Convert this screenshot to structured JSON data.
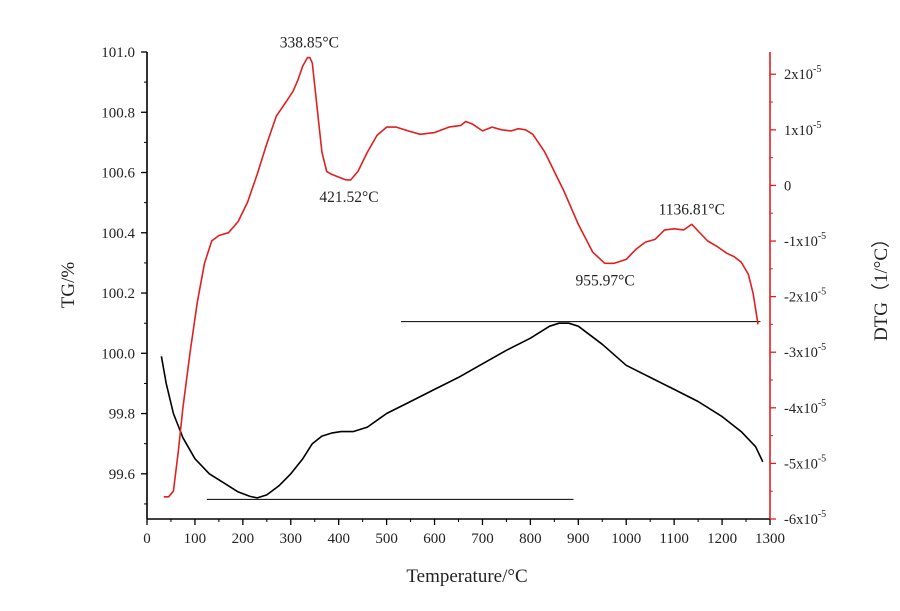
{
  "chart_data": {
    "type": "line",
    "title": "",
    "xlabel": "Temperature/°C",
    "ylabel_left": "TG/%",
    "ylabel_right": "DTG（1/°C）",
    "xlim": [
      0,
      1300
    ],
    "ylim_left": [
      99.45,
      101.0
    ],
    "ylim_right": [
      -6,
      2.4
    ],
    "right_scale_unit": "x10-5",
    "x_ticks": [
      0,
      100,
      200,
      300,
      400,
      500,
      600,
      700,
      800,
      900,
      1000,
      1100,
      1200,
      1300
    ],
    "x_tick_labels": [
      "0",
      "100",
      "200",
      "300",
      "400",
      "500",
      "600",
      "700",
      "800",
      "900",
      "1000",
      "1100",
      "1200",
      "1300"
    ],
    "y_left_ticks": [
      99.6,
      99.8,
      100.0,
      100.2,
      100.4,
      100.6,
      100.8,
      101.0
    ],
    "y_left_tick_labels": [
      "99.6",
      "99.8",
      "100.0",
      "100.2",
      "100.4",
      "100.6",
      "100.8",
      "101.0"
    ],
    "y_right_ticks": [
      {
        "value": 2,
        "mantissa": "2x10",
        "exp": "-5"
      },
      {
        "value": 1,
        "mantissa": "1x10",
        "exp": "-5"
      },
      {
        "value": 0,
        "mantissa": "0",
        "exp": ""
      },
      {
        "value": -1,
        "mantissa": "-1x10",
        "exp": "-5"
      },
      {
        "value": -2,
        "mantissa": "-2x10",
        "exp": "-5"
      },
      {
        "value": -3,
        "mantissa": "-3x10",
        "exp": "-5"
      },
      {
        "value": -4,
        "mantissa": "-4x10",
        "exp": "-5"
      },
      {
        "value": -5,
        "mantissa": "-5x10",
        "exp": "-5"
      },
      {
        "value": -6,
        "mantissa": "-6x10",
        "exp": "-5"
      }
    ],
    "series": [
      {
        "name": "TG",
        "axis": "left",
        "color": "#000000",
        "x": [
          30,
          40,
          55,
          75,
          100,
          130,
          160,
          190,
          215,
          230,
          250,
          275,
          300,
          325,
          345,
          365,
          385,
          405,
          430,
          460,
          500,
          550,
          600,
          650,
          700,
          750,
          800,
          840,
          860,
          880,
          900,
          950,
          1000,
          1050,
          1100,
          1150,
          1200,
          1240,
          1270,
          1285
        ],
        "values": [
          99.99,
          99.9,
          99.8,
          99.72,
          99.65,
          99.6,
          99.57,
          99.54,
          99.525,
          99.52,
          99.53,
          99.56,
          99.6,
          99.65,
          99.7,
          99.725,
          99.735,
          99.74,
          99.74,
          99.755,
          99.8,
          99.84,
          99.88,
          99.92,
          99.965,
          100.01,
          100.05,
          100.09,
          100.1,
          100.1,
          100.09,
          100.03,
          99.96,
          99.92,
          99.88,
          99.84,
          99.79,
          99.74,
          99.69,
          99.64
        ]
      },
      {
        "name": "DTG",
        "axis": "right",
        "color": "#e02020",
        "x": [
          35,
          45,
          55,
          65,
          75,
          90,
          105,
          120,
          135,
          150,
          170,
          190,
          210,
          230,
          250,
          270,
          290,
          305,
          315,
          325,
          335,
          340,
          345,
          355,
          365,
          375,
          385,
          400,
          415,
          425,
          440,
          460,
          480,
          500,
          520,
          545,
          570,
          600,
          630,
          655,
          665,
          680,
          700,
          720,
          740,
          760,
          775,
          790,
          805,
          830,
          850,
          870,
          900,
          930,
          955,
          975,
          1000,
          1020,
          1040,
          1060,
          1080,
          1100,
          1120,
          1136.81,
          1150,
          1170,
          1190,
          1210,
          1225,
          1240,
          1255,
          1265,
          1275
        ],
        "values": [
          -5.6,
          -5.6,
          -5.5,
          -4.8,
          -4.0,
          -3.0,
          -2.1,
          -1.4,
          -1.0,
          -0.9,
          -0.85,
          -0.65,
          -0.3,
          0.2,
          0.75,
          1.25,
          1.5,
          1.7,
          1.9,
          2.15,
          2.3,
          2.3,
          2.2,
          1.4,
          0.6,
          0.25,
          0.2,
          0.15,
          0.1,
          0.1,
          0.25,
          0.6,
          0.9,
          1.05,
          1.05,
          0.98,
          0.92,
          0.95,
          1.05,
          1.08,
          1.15,
          1.1,
          0.98,
          1.05,
          1.0,
          0.98,
          1.02,
          1.0,
          0.92,
          0.6,
          0.25,
          -0.1,
          -0.7,
          -1.2,
          -1.4,
          -1.4,
          -1.33,
          -1.15,
          -1.02,
          -0.97,
          -0.8,
          -0.78,
          -0.8,
          -0.7,
          -0.82,
          -1.0,
          -1.1,
          -1.22,
          -1.28,
          -1.38,
          -1.6,
          -1.95,
          -2.5
        ]
      }
    ],
    "reference_lines": [
      {
        "axis": "left",
        "y": 99.515,
        "x_start": 125,
        "x_end": 890,
        "color": "#000000"
      },
      {
        "axis": "left",
        "y": 100.105,
        "x_start": 530,
        "x_end": 1280,
        "color": "#000000"
      }
    ],
    "annotations": [
      {
        "text": "338.85°C",
        "x": 338.85,
        "axis": "right",
        "y": 2.3,
        "offset": "above"
      },
      {
        "text": "421.52°C",
        "x": 421.52,
        "axis": "right",
        "y": 0.1,
        "offset": "below"
      },
      {
        "text": "955.97°C",
        "x": 955.97,
        "axis": "right",
        "y": -1.4,
        "offset": "below"
      },
      {
        "text": "1136.81°C",
        "x": 1136.81,
        "axis": "right",
        "y": -0.7,
        "offset": "above"
      }
    ],
    "colors": {
      "left_axis": "#000000",
      "right_axis": "#e02020"
    }
  }
}
